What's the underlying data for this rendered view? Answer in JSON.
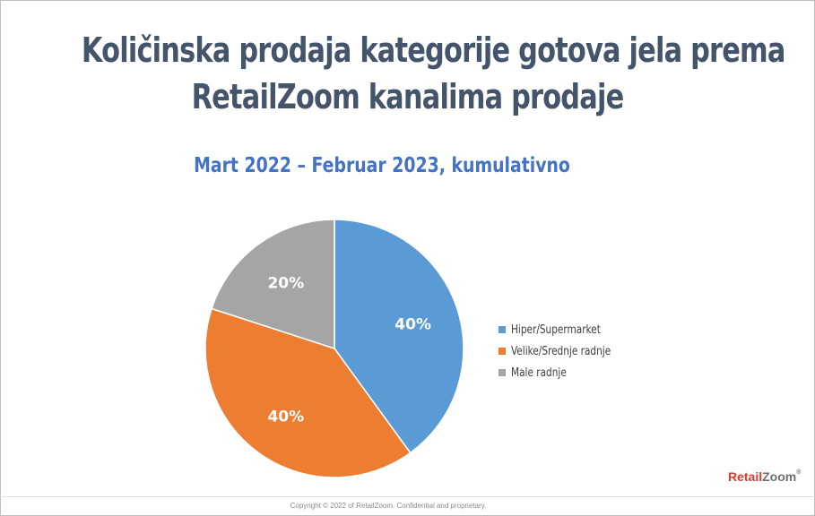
{
  "title_line1": "Količinska prodaja kategorije gotova jela prema",
  "title_line2": "RetailZoom kanalima prodaje",
  "subtitle": "Mart 2022 – Februar 2023, kumulativno",
  "copyright": "Copyright © 2022 of RetailZoom. Confidential and proprietary.",
  "logo": {
    "part1": "Retail",
    "part2": "Zoom",
    "reg": "®"
  },
  "chart_data": {
    "type": "pie",
    "title": "Količinska prodaja kategorije gotova jela prema RetailZoom kanalima prodaje",
    "subtitle": "Mart 2022 – Februar 2023, kumulativno",
    "categories": [
      "Hiper/Supermarket",
      "Velike/Srednje radnje",
      "Male radnje"
    ],
    "values": [
      40,
      40,
      20
    ],
    "labels": [
      "40%",
      "40%",
      "20%"
    ],
    "colors": [
      "#5b9bd5",
      "#ed7d31",
      "#a5a5a5"
    ],
    "legend_position": "right",
    "start_angle": "12 o'clock, clockwise"
  }
}
